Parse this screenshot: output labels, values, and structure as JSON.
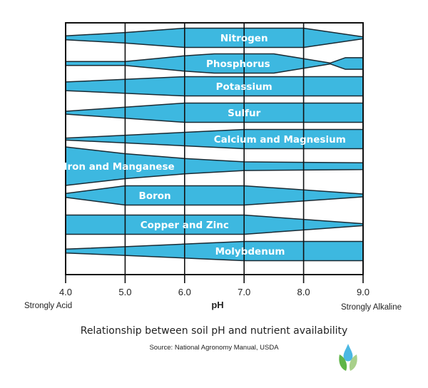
{
  "chart_data": {
    "type": "area",
    "title": "Relationship between soil pH and nutrient availability",
    "source": "Source:  National Agronomy Manual, USDA",
    "xlabel": "pH",
    "xlim": [
      4.0,
      9.0
    ],
    "x_ticks": [
      "4.0",
      "5.0",
      "6.0",
      "7.0",
      "8.0",
      "9.0"
    ],
    "x_left_annotation": "Strongly Acid",
    "x_right_annotation": "Strongly Alkaline",
    "grid": true,
    "value_meaning": "relative availability (band thickness, 1 = full)",
    "color": "#3db8e0",
    "series": [
      {
        "name": "Nitrogen",
        "label_ph": 7.0,
        "points": [
          [
            4,
            0.2
          ],
          [
            5,
            0.55
          ],
          [
            6,
            1
          ],
          [
            8,
            1
          ],
          [
            9,
            0.1
          ]
        ]
      },
      {
        "name": "Phosphorus",
        "label_ph": 6.9,
        "points": [
          [
            4,
            0.2
          ],
          [
            5,
            0.2
          ],
          [
            6,
            0.8
          ],
          [
            6.5,
            1
          ],
          [
            7.5,
            1
          ],
          [
            8.45,
            0.05
          ],
          [
            8.7,
            0.6
          ],
          [
            9,
            0.6
          ]
        ]
      },
      {
        "name": "Potassium",
        "label_ph": 7.0,
        "points": [
          [
            4,
            0.45
          ],
          [
            6,
            1
          ],
          [
            9,
            1
          ]
        ]
      },
      {
        "name": "Sulfur",
        "label_ph": 7.0,
        "points": [
          [
            4,
            0.15
          ],
          [
            6,
            1
          ],
          [
            9,
            1
          ]
        ]
      },
      {
        "name": "Calcium and Magnesium",
        "label_ph": 7.6,
        "points": [
          [
            4,
            0.1
          ],
          [
            7,
            1
          ],
          [
            9,
            1
          ]
        ]
      },
      {
        "name": "Iron and Manganese",
        "label_ph": 4.9,
        "points": [
          [
            4,
            2
          ],
          [
            5,
            1.3
          ],
          [
            6,
            0.8
          ],
          [
            7,
            0.45
          ],
          [
            9,
            0.35
          ]
        ]
      },
      {
        "name": "Boron",
        "label_ph": 5.5,
        "points": [
          [
            4,
            0.2
          ],
          [
            5,
            1
          ],
          [
            7,
            1
          ],
          [
            9,
            0.15
          ]
        ]
      },
      {
        "name": "Copper and Zinc",
        "label_ph": 6.0,
        "points": [
          [
            4,
            1
          ],
          [
            7,
            1
          ],
          [
            9,
            0.1
          ]
        ]
      },
      {
        "name": "Molybdenum",
        "label_ph": 7.1,
        "points": [
          [
            4,
            0.2
          ],
          [
            5,
            0.45
          ],
          [
            7,
            1
          ],
          [
            9,
            1
          ]
        ]
      }
    ]
  }
}
